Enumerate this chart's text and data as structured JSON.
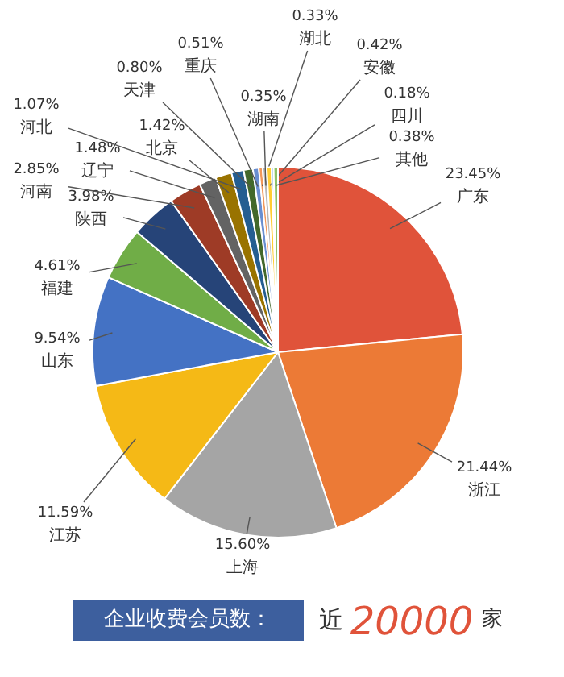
{
  "chart_data": {
    "type": "pie",
    "categories": [
      "广东",
      "浙江",
      "上海",
      "江苏",
      "山东",
      "福建",
      "陕西",
      "河南",
      "辽宁",
      "北京",
      "河北",
      "天津",
      "重庆",
      "湖北",
      "湖南",
      "安徽",
      "四川",
      "其他"
    ],
    "values": [
      23.45,
      21.44,
      15.6,
      11.59,
      9.54,
      4.61,
      3.98,
      2.85,
      1.48,
      1.42,
      1.07,
      0.8,
      0.51,
      0.33,
      0.35,
      0.42,
      0.18,
      0.38
    ],
    "value_labels": [
      "23.45%",
      "21.44%",
      "15.60%",
      "11.59%",
      "9.54%",
      "4.61%",
      "3.98%",
      "2.85%",
      "1.48%",
      "1.42%",
      "1.07%",
      "0.80%",
      "0.51%",
      "0.33%",
      "0.35%",
      "0.42%",
      "0.18%",
      "0.38%"
    ],
    "colors": [
      "#e0533a",
      "#ec7a36",
      "#a5a5a5",
      "#f5b916",
      "#4472c4",
      "#70ad47",
      "#264478",
      "#9e3b26",
      "#636363",
      "#997300",
      "#255e91",
      "#43682b",
      "#698ed0",
      "#f1975a",
      "#b7b7b7",
      "#ffcd33",
      "#5b9bd5",
      "#8cc168"
    ],
    "annotations": [
      "企业收费会员数：",
      "近",
      "20000",
      "家"
    ]
  }
}
